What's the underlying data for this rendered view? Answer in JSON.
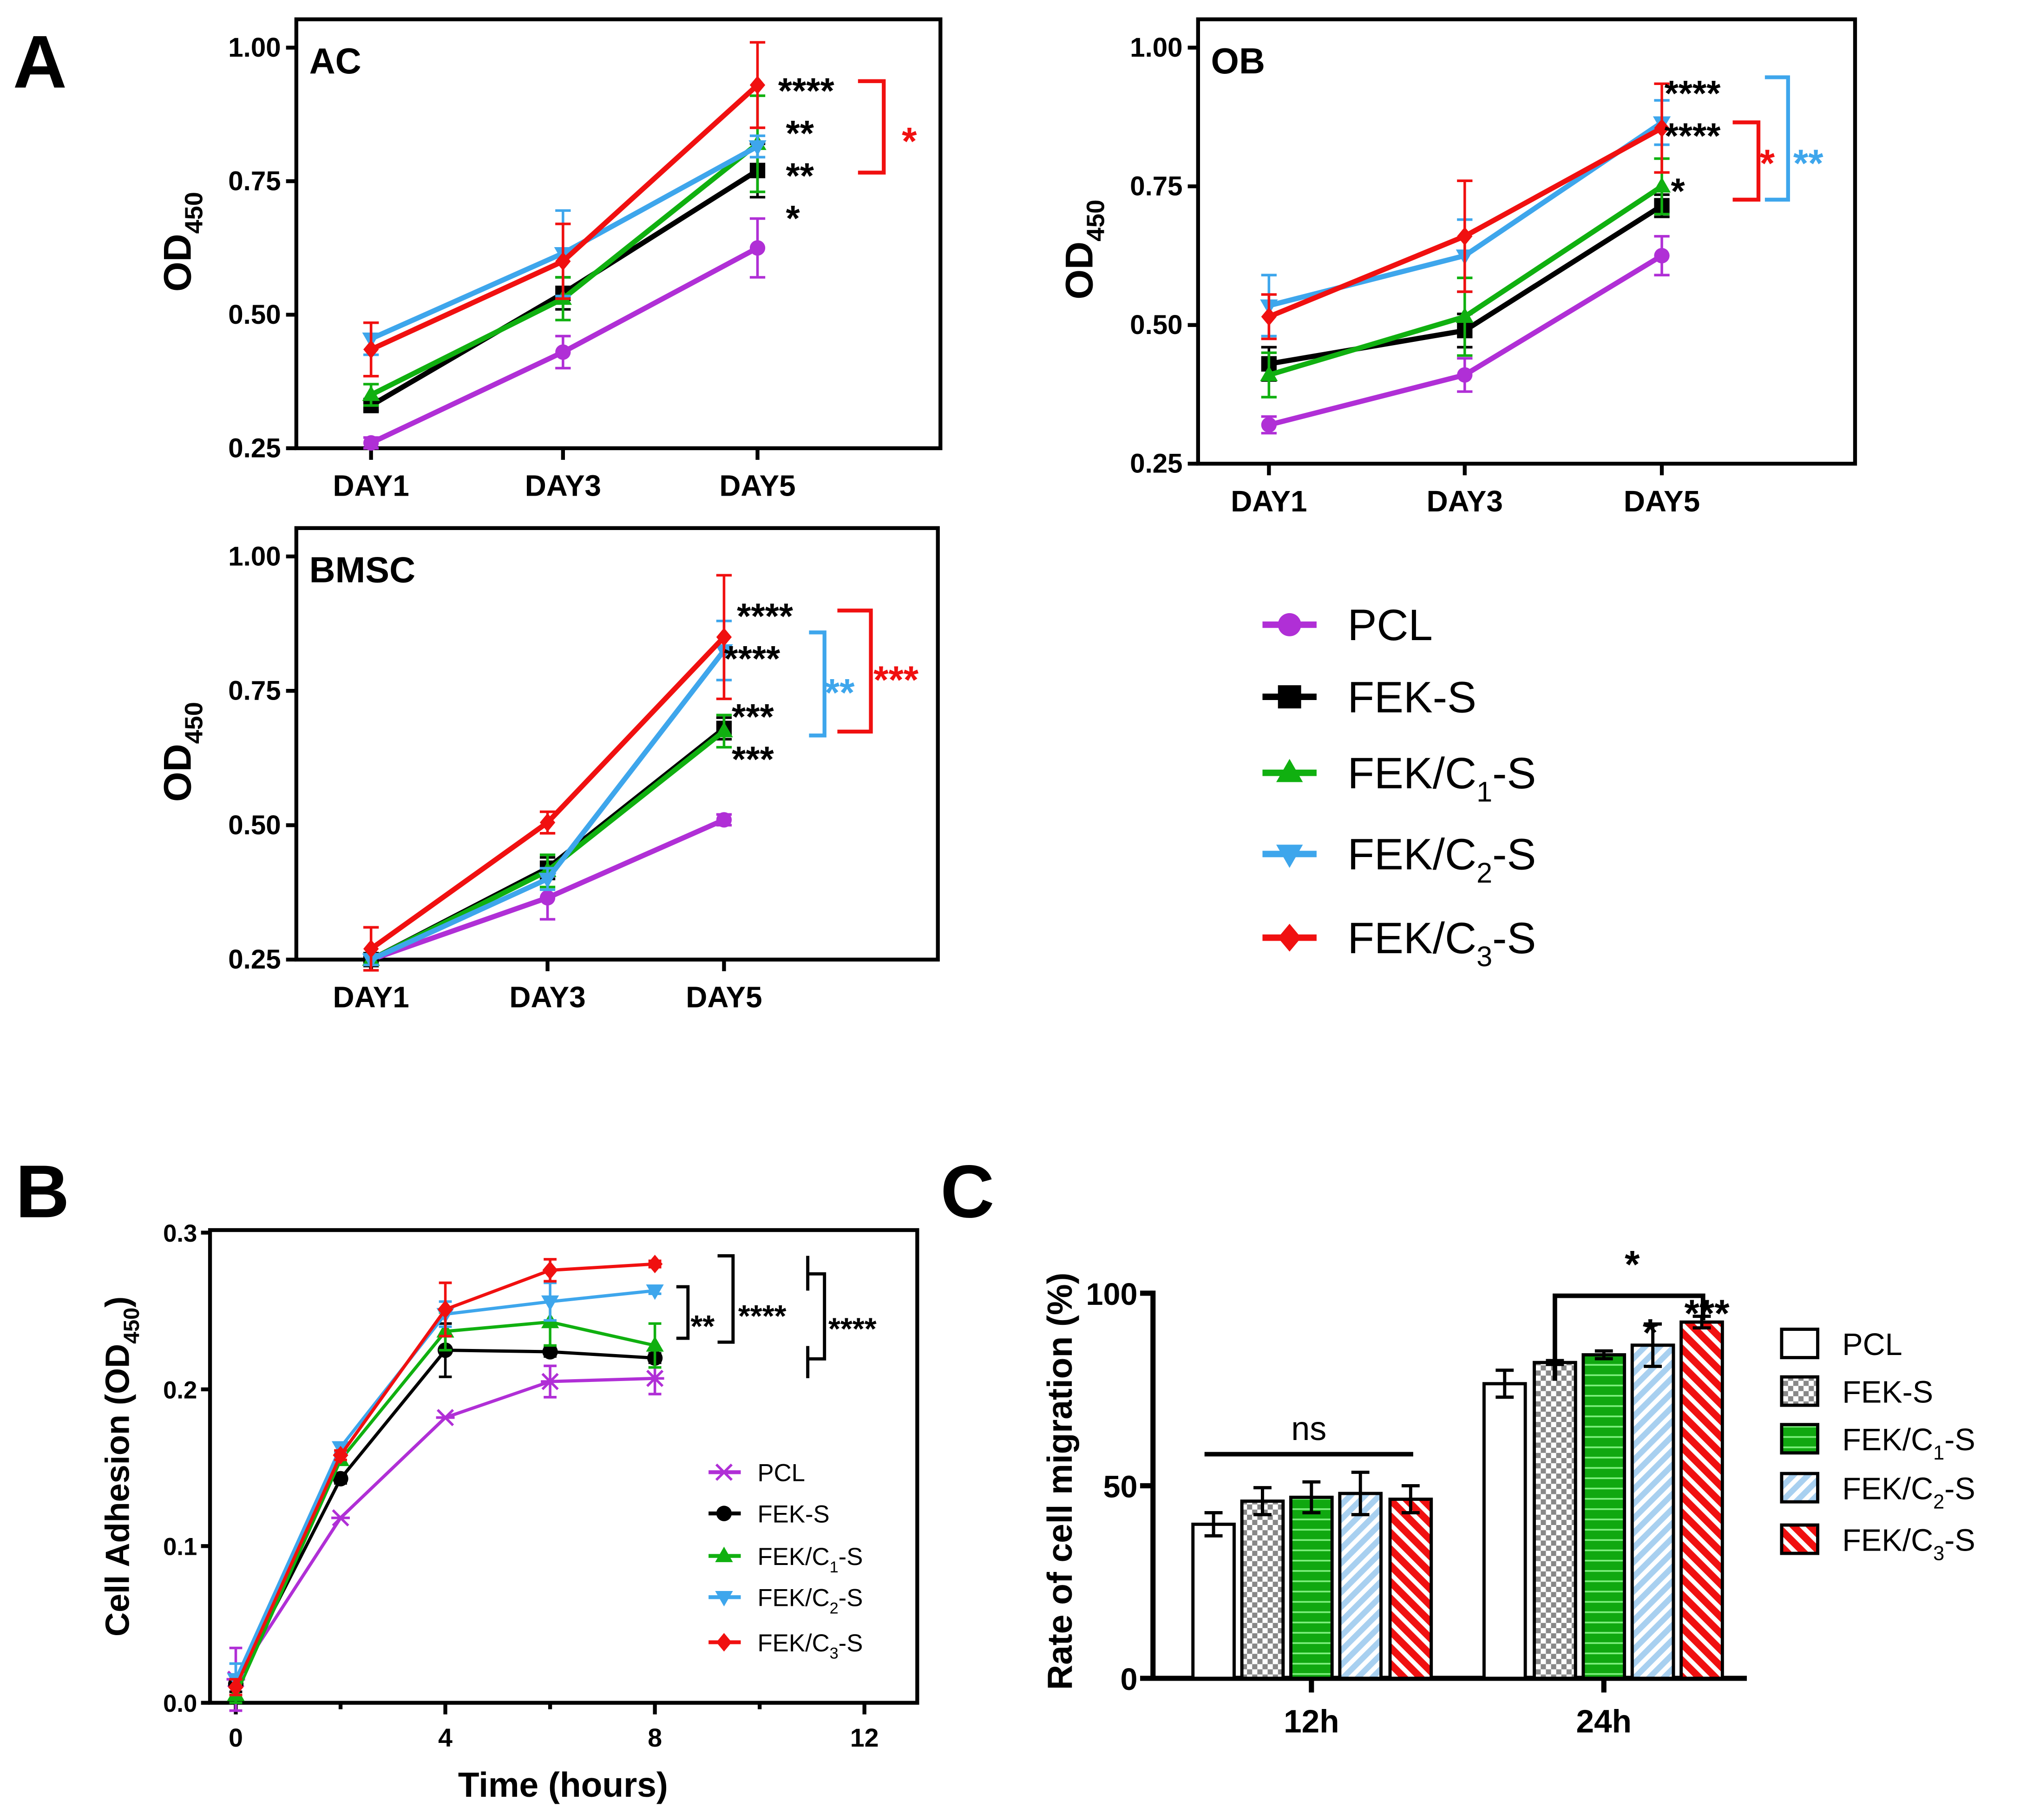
{
  "panel_labels": {
    "a": "A",
    "b": "B",
    "c": "C"
  },
  "colors": {
    "PCL": "#b02fd6",
    "FEK-S": "#000000",
    "FEK/C1-S": "#10b010",
    "FEK/C2-S": "#3ea6ec",
    "FEK/C3-S": "#f01010"
  },
  "legend_a": [
    {
      "name": "PCL",
      "main": "PCL",
      "sub": "",
      "rest": "",
      "marker": "circle"
    },
    {
      "name": "FEK-S",
      "main": "FEK-S",
      "sub": "",
      "rest": "",
      "marker": "square"
    },
    {
      "name": "FEK/C1-S",
      "main": "FEK/C",
      "sub": "1",
      "rest": "-S",
      "marker": "triangle-up"
    },
    {
      "name": "FEK/C2-S",
      "main": "FEK/C",
      "sub": "2",
      "rest": "-S",
      "marker": "triangle-down"
    },
    {
      "name": "FEK/C3-S",
      "main": "FEK/C",
      "sub": "3",
      "rest": "-S",
      "marker": "diamond"
    }
  ],
  "chart_data": [
    {
      "type": "line",
      "title": "AC",
      "xlabel": "",
      "ylabel": "OD450",
      "ylabel_main": "OD",
      "ylabel_sub": "450",
      "categories": [
        "DAY1",
        "DAY3",
        "DAY5"
      ],
      "ylim": [
        0.25,
        1.0
      ],
      "yticks": [
        "0.25",
        "0.50",
        "0.75",
        "1.00"
      ],
      "ytick_values": [
        0.25,
        0.5,
        0.75,
        1.0
      ],
      "series": [
        {
          "name": "PCL",
          "values": [
            0.26,
            0.43,
            0.625
          ],
          "err": [
            0.01,
            0.03,
            0.055
          ]
        },
        {
          "name": "FEK-S",
          "values": [
            0.33,
            0.54,
            0.77
          ],
          "err": [
            0.01,
            0.03,
            0.05
          ]
        },
        {
          "name": "FEK/C1-S",
          "values": [
            0.35,
            0.53,
            0.82
          ],
          "err": [
            0.02,
            0.04,
            0.09
          ]
        },
        {
          "name": "FEK/C2-S",
          "values": [
            0.455,
            0.615,
            0.815
          ],
          "err": [
            0.03,
            0.08,
            0.02
          ]
        },
        {
          "name": "FEK/C3-S",
          "values": [
            0.435,
            0.6,
            0.93
          ],
          "err": [
            0.05,
            0.07,
            0.08
          ]
        }
      ],
      "annotations": [
        {
          "text": "****",
          "color": "#000000"
        },
        {
          "text": "**",
          "color": "#000000"
        },
        {
          "text": "**",
          "color": "#000000"
        },
        {
          "text": "*",
          "color": "#000000"
        },
        {
          "text": "*",
          "color": "#f01010"
        }
      ]
    },
    {
      "type": "line",
      "title": "OB",
      "xlabel": "",
      "ylabel": "OD450",
      "ylabel_main": "OD",
      "ylabel_sub": "450",
      "categories": [
        "DAY1",
        "DAY3",
        "DAY5"
      ],
      "ylim": [
        0.25,
        1.0
      ],
      "yticks": [
        "0.25",
        "0.50",
        "0.75",
        "1.00"
      ],
      "ytick_values": [
        0.25,
        0.5,
        0.75,
        1.0
      ],
      "series": [
        {
          "name": "PCL",
          "values": [
            0.32,
            0.41,
            0.625
          ],
          "err": [
            0.015,
            0.03,
            0.035
          ]
        },
        {
          "name": "FEK-S",
          "values": [
            0.43,
            0.49,
            0.715
          ],
          "err": [
            0.03,
            0.03,
            0.02
          ]
        },
        {
          "name": "FEK/C1-S",
          "values": [
            0.41,
            0.515,
            0.75
          ],
          "err": [
            0.04,
            0.07,
            0.05
          ]
        },
        {
          "name": "FEK/C2-S",
          "values": [
            0.535,
            0.625,
            0.865
          ],
          "err": [
            0.055,
            0.065,
            0.04
          ]
        },
        {
          "name": "FEK/C3-S",
          "values": [
            0.515,
            0.66,
            0.855
          ],
          "err": [
            0.04,
            0.1,
            0.08
          ]
        }
      ],
      "annotations": [
        {
          "text": "****",
          "color": "#000000"
        },
        {
          "text": "****",
          "color": "#000000"
        },
        {
          "text": "*",
          "color": "#000000"
        },
        {
          "text": "*",
          "color": "#f01010"
        },
        {
          "text": "**",
          "color": "#3ea6ec"
        }
      ]
    },
    {
      "type": "line",
      "title": "BMSC",
      "xlabel": "",
      "ylabel": "OD450",
      "ylabel_main": "OD",
      "ylabel_sub": "450",
      "categories": [
        "DAY1",
        "DAY3",
        "DAY5"
      ],
      "ylim": [
        0.25,
        1.0
      ],
      "yticks": [
        "0.25",
        "0.50",
        "0.75",
        "1.00"
      ],
      "ytick_values": [
        0.25,
        0.5,
        0.75,
        1.0
      ],
      "series": [
        {
          "name": "PCL",
          "values": [
            0.25,
            0.365,
            0.51
          ],
          "err": [
            0.01,
            0.04,
            0.01
          ]
        },
        {
          "name": "FEK-S",
          "values": [
            0.25,
            0.42,
            0.68
          ],
          "err": [
            0.01,
            0.02,
            0.02
          ]
        },
        {
          "name": "FEK/C1-S",
          "values": [
            0.25,
            0.415,
            0.675
          ],
          "err": [
            0.01,
            0.03,
            0.03
          ]
        },
        {
          "name": "FEK/C2-S",
          "values": [
            0.25,
            0.4,
            0.825
          ],
          "err": [
            0.01,
            0.02,
            0.055
          ]
        },
        {
          "name": "FEK/C3-S",
          "values": [
            0.27,
            0.505,
            0.85
          ],
          "err": [
            0.04,
            0.02,
            0.115
          ]
        }
      ],
      "annotations": [
        {
          "text": "****",
          "color": "#000000"
        },
        {
          "text": "****",
          "color": "#000000"
        },
        {
          "text": "***",
          "color": "#000000"
        },
        {
          "text": "***",
          "color": "#000000"
        },
        {
          "text": "**",
          "color": "#3ea6ec"
        },
        {
          "text": "***",
          "color": "#f01010"
        }
      ]
    },
    {
      "type": "line",
      "title": "",
      "xlabel": "Time (hours)",
      "ylabel": "Cell Adhesion (OD450)",
      "ylabel_main": "Cell Adhesion (OD",
      "ylabel_sub": "450",
      "ylabel_rest": ")",
      "x": [
        0,
        2,
        4,
        6,
        8
      ],
      "xlim": [
        0,
        12
      ],
      "xticks": [
        "0",
        "4",
        "8",
        "12"
      ],
      "xtick_values": [
        0,
        4,
        8,
        12
      ],
      "ylim": [
        0,
        0.3
      ],
      "yticks": [
        "0.0",
        "0.1",
        "0.2",
        "0.3"
      ],
      "ytick_values": [
        0,
        0.1,
        0.2,
        0.3
      ],
      "series": [
        {
          "name": "PCL",
          "main": "PCL",
          "sub": "",
          "rest": "",
          "marker": "x",
          "values": [
            0.015,
            0.118,
            0.182,
            0.205,
            0.207
          ],
          "err": [
            0.02,
            0,
            0,
            0.01,
            0.01
          ]
        },
        {
          "name": "FEK-S",
          "main": "FEK-S",
          "sub": "",
          "rest": "",
          "marker": "circle",
          "values": [
            0.012,
            0.143,
            0.225,
            0.224,
            0.22
          ],
          "err": [
            0.005,
            0.003,
            0.017,
            0.003,
            0.003
          ]
        },
        {
          "name": "FEK/C1-S",
          "main": "FEK/C",
          "sub": "1",
          "rest": "-S",
          "marker": "triangle-up",
          "values": [
            0.005,
            0.155,
            0.237,
            0.243,
            0.228
          ],
          "err": [
            0.005,
            0.003,
            0.012,
            0.015,
            0.014
          ]
        },
        {
          "name": "FEK/C2-S",
          "main": "FEK/C",
          "sub": "2",
          "rest": "-S",
          "marker": "triangle-down",
          "values": [
            0.015,
            0.163,
            0.248,
            0.256,
            0.263
          ],
          "err": [
            0.01,
            0.003,
            0.008,
            0.012,
            0.002
          ]
        },
        {
          "name": "FEK/C3-S",
          "main": "FEK/C",
          "sub": "3",
          "rest": "-S",
          "marker": "diamond",
          "values": [
            0.01,
            0.158,
            0.251,
            0.276,
            0.28
          ],
          "err": [
            0.005,
            0.003,
            0.017,
            0.007,
            0.002
          ]
        }
      ],
      "annotations": [
        {
          "text": "**",
          "color": "#000000"
        },
        {
          "text": "****",
          "color": "#000000"
        },
        {
          "text": "****",
          "color": "#000000"
        }
      ]
    },
    {
      "type": "bar",
      "title": "",
      "xlabel": "",
      "ylabel": "Rate of cell migration (%)",
      "categories": [
        "12h",
        "24h"
      ],
      "ylim": [
        0,
        100
      ],
      "yticks": [
        "0",
        "50",
        "100"
      ],
      "ytick_values": [
        0,
        50,
        100
      ],
      "series": [
        {
          "name": "PCL",
          "main": "PCL",
          "sub": "",
          "rest": "",
          "pattern": "none",
          "values": [
            40,
            76.5
          ],
          "err": [
            3,
            3.5
          ]
        },
        {
          "name": "FEK-S",
          "main": "FEK-S",
          "sub": "",
          "rest": "",
          "pattern": "checker",
          "values": [
            46,
            82
          ],
          "err": [
            3.5,
            0.5
          ]
        },
        {
          "name": "FEK/C1-S",
          "main": "FEK/C",
          "sub": "1",
          "rest": "-S",
          "pattern": "horizontal",
          "values": [
            47,
            84
          ],
          "err": [
            4,
            1
          ]
        },
        {
          "name": "FEK/C2-S",
          "main": "FEK/C",
          "sub": "2",
          "rest": "-S",
          "pattern": "diagonal-blue",
          "values": [
            48,
            86.5
          ],
          "err": [
            5.5,
            5.5
          ]
        },
        {
          "name": "FEK/C3-S",
          "main": "FEK/C",
          "sub": "3",
          "rest": "-S",
          "pattern": "diagonal-red",
          "values": [
            46.5,
            92.5
          ],
          "err": [
            3.5,
            1.5
          ]
        }
      ],
      "annotations": [
        {
          "text": "ns",
          "color": "#000000"
        },
        {
          "text": "*",
          "color": "#000000"
        },
        {
          "text": "*",
          "color": "#000000"
        },
        {
          "text": "***",
          "color": "#000000"
        }
      ]
    }
  ]
}
